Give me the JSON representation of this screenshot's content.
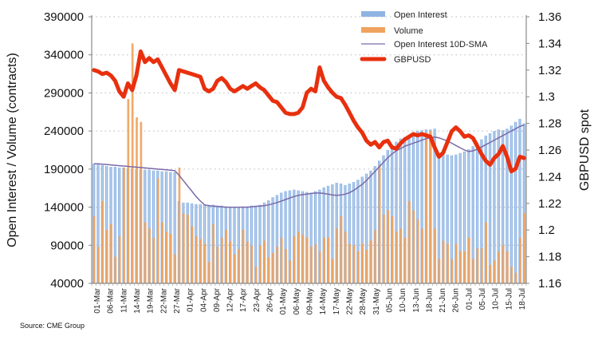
{
  "chart_data": {
    "type": "bar",
    "title": "",
    "ylabel": "Open Interest / Volume (contracts)",
    "y2label": "GBPUSD spot",
    "ylim": [
      40000,
      390000
    ],
    "y2lim": [
      1.16,
      1.36
    ],
    "yticks": [
      "390000",
      "340000",
      "290000",
      "240000",
      "190000",
      "140000",
      "90000",
      "40000"
    ],
    "y2ticks": [
      "1.36",
      "1.34",
      "1.32",
      "1.3",
      "1.28",
      "1.26",
      "1.24",
      "1.22",
      "1.2",
      "1.18",
      "1.16"
    ],
    "grid": "horizontal-dotted",
    "legend_position": "top-right",
    "legend": [
      "Open Interest",
      "Volume",
      "Open Interest 10D-SMA",
      "GBPUSD"
    ],
    "xtick_labels": [
      "01-Mar",
      "06-Mar",
      "11-Mar",
      "14-Mar",
      "19-Mar",
      "22-Mar",
      "27-Mar",
      "01-Apr",
      "04-Apr",
      "09-Apr",
      "12-Apr",
      "17-Apr",
      "23-Apr",
      "26-Apr",
      "01-May",
      "06-May",
      "09-May",
      "14-May",
      "17-May",
      "22-May",
      "28-May",
      "31-May",
      "05-Jun",
      "10-Jun",
      "13-Jun",
      "18-Jun",
      "21-Jun",
      "26-Jun",
      "01-Jul",
      "05-Jul",
      "10-Jul",
      "15-Jul",
      "18-Jul"
    ],
    "series": [
      {
        "name": "Open Interest",
        "axis": "left",
        "color": "#8fb4e3",
        "values": [
          197000,
          196000,
          195000,
          194000,
          193000,
          193000,
          192000,
          192000,
          191000,
          191000,
          190000,
          190000,
          189000,
          189000,
          188000,
          188000,
          187000,
          187000,
          186000,
          186000,
          148000,
          146000,
          146000,
          145000,
          144000,
          144000,
          143000,
          143000,
          143000,
          142000,
          142000,
          141000,
          140000,
          140000,
          140000,
          141000,
          141000,
          142000,
          142000,
          143000,
          146000,
          149000,
          153000,
          156000,
          159000,
          161000,
          162000,
          163000,
          162000,
          161000,
          160000,
          159000,
          161000,
          163000,
          166000,
          168000,
          170000,
          172000,
          171000,
          169000,
          171000,
          173000,
          176000,
          180000,
          184000,
          188000,
          194000,
          201000,
          208000,
          215000,
          222000,
          226000,
          230000,
          232000,
          234000,
          236000,
          240000,
          241000,
          242000,
          242000,
          243000,
          210000,
          210000,
          209000,
          208000,
          209000,
          211000,
          213000,
          216000,
          220000,
          225000,
          229000,
          234000,
          237000,
          240000,
          242000,
          241000,
          243000,
          247000,
          252000,
          256000,
          250000
        ]
      },
      {
        "name": "Volume",
        "axis": "left",
        "color": "#f0a35e",
        "values": [
          128000,
          88000,
          148000,
          110000,
          118000,
          75000,
          102000,
          192000,
          282000,
          355000,
          258000,
          252000,
          120000,
          112000,
          100000,
          178000,
          120000,
          108000,
          105000,
          78000,
          192000,
          132000,
          130000,
          115000,
          102000,
          98000,
          92000,
          68000,
          118000,
          88000,
          100000,
          110000,
          95000,
          78000,
          85000,
          110000,
          95000,
          90000,
          62000,
          90000,
          96000,
          74000,
          80000,
          88000,
          100000,
          85000,
          70000,
          102000,
          108000,
          104000,
          100000,
          88000,
          92000,
          82000,
          100000,
          100000,
          72000,
          112000,
          128000,
          108000,
          92000,
          90000,
          82000,
          92000,
          84000,
          96000,
          110000,
          196000,
          130000,
          136000,
          128000,
          108000,
          112000,
          100000,
          148000,
          136000,
          124000,
          112000,
          238000,
          240000,
          112000,
          72000,
          96000,
          92000,
          72000,
          92000,
          82000,
          82000,
          100000,
          72000,
          86000,
          86000,
          120000,
          64000,
          70000,
          82000,
          90000,
          82000,
          62000,
          54000,
          100000,
          132000
        ]
      },
      {
        "name": "Open Interest 10D-SMA",
        "axis": "left",
        "color": "#7a6aa8",
        "values": [
          197000,
          197000,
          196500,
          196000,
          195500,
          195000,
          194500,
          194000,
          193500,
          193000,
          192500,
          192000,
          191500,
          191000,
          190500,
          190000,
          189500,
          189000,
          188500,
          188000,
          182000,
          175000,
          168000,
          161000,
          154000,
          148000,
          143000,
          142000,
          141500,
          141000,
          140500,
          140000,
          140000,
          140000,
          140000,
          140000,
          140000,
          140500,
          141000,
          141500,
          142000,
          143000,
          144500,
          146000,
          148000,
          150000,
          152000,
          154000,
          155500,
          156500,
          157000,
          158000,
          158500,
          158500,
          158000,
          157000,
          156000,
          155500,
          156000,
          157000,
          159000,
          162000,
          166000,
          170000,
          175000,
          181000,
          187000,
          193000,
          199000,
          205000,
          210000,
          214000,
          217000,
          220000,
          222000,
          224000,
          226000,
          228000,
          230000,
          231000,
          232000,
          231000,
          229000,
          227000,
          224000,
          221000,
          218000,
          215000,
          213000,
          214000,
          216000,
          219000,
          222000,
          225000,
          228000,
          231000,
          234000,
          237000,
          240000,
          243000,
          246000,
          248000
        ]
      },
      {
        "name": "GBPUSD",
        "axis": "right",
        "color": "#e8300e",
        "values": [
          1.32,
          1.319,
          1.317,
          1.318,
          1.316,
          1.312,
          1.304,
          1.3,
          1.31,
          1.305,
          1.316,
          1.334,
          1.326,
          1.329,
          1.326,
          1.328,
          1.322,
          1.316,
          1.31,
          1.305,
          1.32,
          1.319,
          1.318,
          1.317,
          1.316,
          1.315,
          1.306,
          1.304,
          1.306,
          1.312,
          1.314,
          1.311,
          1.306,
          1.304,
          1.306,
          1.308,
          1.306,
          1.308,
          1.31,
          1.307,
          1.305,
          1.301,
          1.297,
          1.296,
          1.292,
          1.288,
          1.287,
          1.287,
          1.288,
          1.292,
          1.303,
          1.306,
          1.304,
          1.322,
          1.312,
          1.307,
          1.303,
          1.3,
          1.299,
          1.294,
          1.288,
          1.282,
          1.277,
          1.273,
          1.267,
          1.264,
          1.266,
          1.262,
          1.266,
          1.267,
          1.262,
          1.261,
          1.265,
          1.268,
          1.27,
          1.272,
          1.271,
          1.272,
          1.271,
          1.27,
          1.262,
          1.255,
          1.258,
          1.266,
          1.274,
          1.277,
          1.274,
          1.27,
          1.271,
          1.269,
          1.263,
          1.257,
          1.252,
          1.249,
          1.254,
          1.257,
          1.263,
          1.255,
          1.244,
          1.246,
          1.255,
          1.254
        ]
      }
    ]
  },
  "source": "Source: CME Group"
}
